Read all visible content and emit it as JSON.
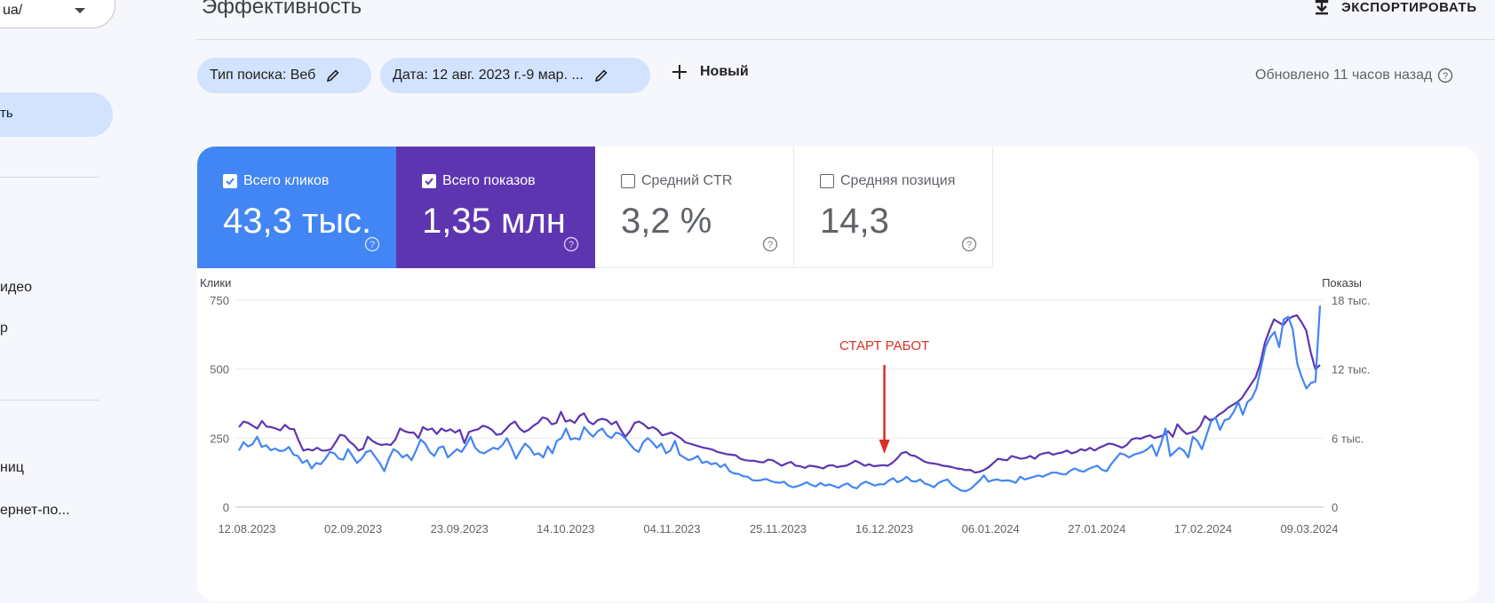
{
  "sidebar": {
    "property": "ua/",
    "active_item": "ть",
    "items": [
      "идео",
      "р",
      "ниц",
      "ернет-по..."
    ]
  },
  "header": {
    "title": "Эффективность",
    "export_label": "ЭКСПОРТИРОВАТЬ"
  },
  "filters": {
    "search_type": "Тип поиска: Веб",
    "date_range": "Дата: 12 авг. 2023 г.-9 мар. ...",
    "new_label": "Новый",
    "updated": "Обновлено 11 часов назад"
  },
  "metrics": {
    "clicks": {
      "label": "Всего кликов",
      "value": "43,3 тыс.",
      "checked": true
    },
    "impressions": {
      "label": "Всего показов",
      "value": "1,35 млн",
      "checked": true
    },
    "ctr": {
      "label": "Средний CTR",
      "value": "3,2 %",
      "checked": false
    },
    "position": {
      "label": "Средняя позиция",
      "value": "14,3",
      "checked": false
    }
  },
  "colors": {
    "clicks": "#4285f4",
    "impressions": "#5e35b1",
    "chip": "#d3e3fd",
    "annotation": "#d93025"
  },
  "chart_data": {
    "type": "line",
    "left_axis_label": "Клики",
    "right_axis_label": "Показы",
    "left_ticks": [
      "750",
      "500",
      "250",
      "0"
    ],
    "right_ticks": [
      "18 тыс.",
      "12 тыс.",
      "6 тыс.",
      "0"
    ],
    "left_ylim": [
      0,
      750
    ],
    "right_ylim": [
      0,
      18000
    ],
    "x_labels": [
      "12.08.2023",
      "02.09.2023",
      "23.09.2023",
      "14.10.2023",
      "04.11.2023",
      "25.11.2023",
      "16.12.2023",
      "06.01.2024",
      "27.01.2024",
      "17.02.2024",
      "09.03.2024"
    ],
    "annotation": {
      "text": "СТАРТ РАБОТ",
      "date": "16.12.2023"
    },
    "series": [
      {
        "name": "Всего кликов",
        "axis": "left",
        "values": [
          205,
          235,
          220,
          228,
          255,
          218,
          224,
          206,
          212,
          203,
          205,
          218,
          190,
          185,
          160,
          170,
          140,
          160,
          155,
          175,
          200,
          195,
          175,
          172,
          210,
          185,
          160,
          175,
          200,
          205,
          182,
          160,
          130,
          175,
          210,
          200,
          180,
          190,
          170,
          205,
          245,
          230,
          200,
          185,
          215,
          220,
          180,
          195,
          210,
          200,
          225,
          255,
          215,
          200,
          195,
          205,
          215,
          210,
          225,
          250,
          215,
          175,
          205,
          230,
          215,
          190,
          195,
          180,
          220,
          195,
          240,
          250,
          285,
          245,
          250,
          245,
          290,
          270,
          255,
          275,
          285,
          260,
          250,
          270,
          265,
          250,
          230,
          210,
          200,
          235,
          250,
          235,
          215,
          230,
          195,
          205,
          240,
          190,
          180,
          170,
          175,
          185,
          160,
          165,
          155,
          160,
          145,
          155,
          130,
          122,
          120,
          112,
          110,
          98,
          96,
          98,
          102,
          95,
          90,
          88,
          92,
          78,
          72,
          76,
          82,
          90,
          80,
          75,
          88,
          78,
          82,
          76,
          70,
          80,
          86,
          73,
          68,
          84,
          92,
          85,
          78,
          83,
          82,
          95,
          105,
          90,
          98,
          110,
          95,
          92,
          100,
          85,
          80,
          72,
          88,
          95,
          100,
          80,
          70,
          60,
          58,
          65,
          80,
          95,
          115,
          92,
          98,
          100,
          95,
          97,
          95,
          88,
          110,
          100,
          105,
          110,
          115,
          110,
          118,
          125,
          125,
          120,
          118,
          132,
          140,
          132,
          128,
          138,
          145,
          150,
          135,
          130,
          155,
          175,
          195,
          190,
          180,
          190,
          195,
          200,
          210,
          225,
          185,
          230,
          285,
          185,
          200,
          215,
          205,
          180,
          255,
          240,
          210,
          260,
          310,
          325,
          280,
          315,
          320,
          345,
          380,
          335,
          380,
          395,
          430,
          505,
          580,
          615,
          635,
          580,
          680,
          690,
          645,
          520,
          470,
          430,
          450,
          455,
          730
        ]
      },
      {
        "name": "Всего показов",
        "axis": "left",
        "values": [
          290,
          310,
          305,
          295,
          285,
          312,
          292,
          290,
          285,
          278,
          298,
          284,
          282,
          240,
          205,
          210,
          205,
          215,
          205,
          205,
          210,
          235,
          262,
          258,
          238,
          225,
          205,
          212,
          255,
          240,
          230,
          225,
          228,
          225,
          245,
          285,
          275,
          270,
          270,
          250,
          290,
          280,
          285,
          265,
          285,
          275,
          282,
          270,
          280,
          232,
          272,
          278,
          282,
          295,
          290,
          280,
          262,
          265,
          282,
          300,
          310,
          285,
          272,
          280,
          295,
          305,
          325,
          320,
          300,
          305,
          345,
          310,
          315,
          305,
          330,
          340,
          310,
          300,
          315,
          320,
          315,
          300,
          310,
          280,
          255,
          275,
          305,
          310,
          300,
          285,
          290,
          280,
          260,
          265,
          270,
          260,
          250,
          235,
          230,
          225,
          220,
          215,
          212,
          208,
          200,
          196,
          192,
          190,
          188,
          175,
          170,
          168,
          168,
          164,
          162,
          172,
          170,
          160,
          150,
          158,
          164,
          150,
          148,
          142,
          150,
          148,
          145,
          140,
          150,
          152,
          145,
          148,
          150,
          158,
          168,
          160,
          150,
          155,
          148,
          150,
          152,
          150,
          160,
          175,
          195,
          200,
          188,
          185,
          175,
          165,
          160,
          158,
          155,
          150,
          148,
          145,
          140,
          138,
          134,
          135,
          125,
          128,
          135,
          145,
          160,
          175,
          172,
          170,
          185,
          180,
          175,
          178,
          185,
          175,
          190,
          195,
          198,
          190,
          195,
          198,
          205,
          195,
          200,
          210,
          205,
          215,
          205,
          215,
          222,
          230,
          228,
          222,
          215,
          225,
          245,
          250,
          248,
          255,
          260,
          250,
          255,
          260,
          275,
          255,
          300,
          280,
          265,
          270,
          275,
          295,
          330,
          315,
          320,
          335,
          345,
          360,
          370,
          380,
          395,
          420,
          445,
          470,
          520,
          595,
          640,
          680,
          670,
          660,
          680,
          690,
          695,
          670,
          640,
          560,
          500,
          515
        ]
      }
    ]
  }
}
